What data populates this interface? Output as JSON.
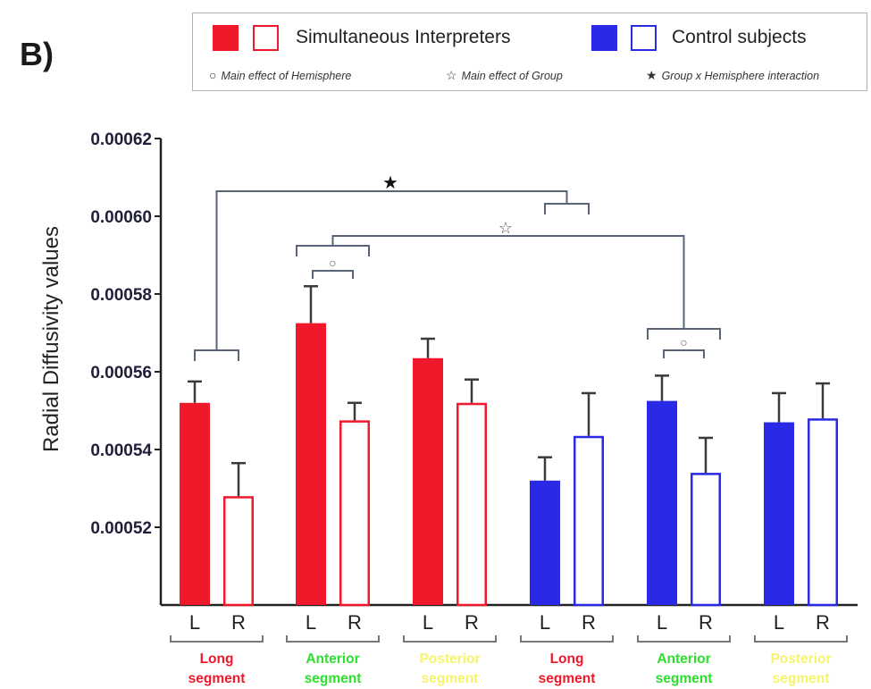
{
  "panel_label": "B)",
  "legend": {
    "groups": [
      {
        "label": "Simultaneous Interpreters",
        "color": "#f0192b"
      },
      {
        "label": "Control subjects",
        "color": "#2929e6"
      }
    ],
    "notes": [
      {
        "symbol": "○",
        "text": "Main effect of Hemisphere"
      },
      {
        "symbol": "☆",
        "text": "Main effect of Group"
      },
      {
        "symbol": "★",
        "text": "Group x Hemisphere interaction"
      }
    ]
  },
  "chart_data": {
    "type": "bar",
    "ylabel": "Radial Diffusivity values",
    "ylim": [
      0.0005,
      0.00062
    ],
    "yticks": [
      "0.00052",
      "0.00054",
      "0.00056",
      "0.00058",
      "0.00060",
      "0.00062"
    ],
    "grid": false,
    "hemisphere_labels": [
      "L",
      "R"
    ],
    "segment_groups": [
      {
        "label_lines": [
          "Long",
          "segment"
        ],
        "color": "#f0192b"
      },
      {
        "label_lines": [
          "Anterior",
          "segment"
        ],
        "color": "#2ee02e"
      },
      {
        "label_lines": [
          "Posterior",
          "segment"
        ],
        "color": "#f5f56b"
      },
      {
        "label_lines": [
          "Long",
          "segment"
        ],
        "color": "#f0192b"
      },
      {
        "label_lines": [
          "Anterior",
          "segment"
        ],
        "color": "#2ee02e"
      },
      {
        "label_lines": [
          "Posterior",
          "segment"
        ],
        "color": "#f5f56b"
      }
    ],
    "bars": [
      {
        "group": "Simultaneous Interpreters",
        "segment": "Long segment",
        "hemisphere": "L",
        "value": 0.000552,
        "error": 5.5e-06,
        "filled": true,
        "color": "#f0192b"
      },
      {
        "group": "Simultaneous Interpreters",
        "segment": "Long segment",
        "hemisphere": "R",
        "value": 0.000528,
        "error": 8.5e-06,
        "filled": false,
        "color": "#f0192b"
      },
      {
        "group": "Simultaneous Interpreters",
        "segment": "Anterior segment",
        "hemisphere": "L",
        "value": 0.0005725,
        "error": 9.5e-06,
        "filled": true,
        "color": "#f0192b"
      },
      {
        "group": "Simultaneous Interpreters",
        "segment": "Anterior segment",
        "hemisphere": "R",
        "value": 0.0005475,
        "error": 4.5e-06,
        "filled": false,
        "color": "#f0192b"
      },
      {
        "group": "Simultaneous Interpreters",
        "segment": "Posterior segment",
        "hemisphere": "L",
        "value": 0.0005635,
        "error": 5e-06,
        "filled": true,
        "color": "#f0192b"
      },
      {
        "group": "Simultaneous Interpreters",
        "segment": "Posterior segment",
        "hemisphere": "R",
        "value": 0.000552,
        "error": 6e-06,
        "filled": false,
        "color": "#f0192b"
      },
      {
        "group": "Control subjects",
        "segment": "Long segment",
        "hemisphere": "L",
        "value": 0.000532,
        "error": 6e-06,
        "filled": true,
        "color": "#2929e6"
      },
      {
        "group": "Control subjects",
        "segment": "Long segment",
        "hemisphere": "R",
        "value": 0.0005435,
        "error": 1.1e-05,
        "filled": false,
        "color": "#2929e6"
      },
      {
        "group": "Control subjects",
        "segment": "Anterior segment",
        "hemisphere": "L",
        "value": 0.0005525,
        "error": 6.5e-06,
        "filled": true,
        "color": "#2929e6"
      },
      {
        "group": "Control subjects",
        "segment": "Anterior segment",
        "hemisphere": "R",
        "value": 0.000534,
        "error": 9e-06,
        "filled": false,
        "color": "#2929e6"
      },
      {
        "group": "Control subjects",
        "segment": "Posterior segment",
        "hemisphere": "L",
        "value": 0.000547,
        "error": 7.5e-06,
        "filled": true,
        "color": "#2929e6"
      },
      {
        "group": "Control subjects",
        "segment": "Posterior segment",
        "hemisphere": "R",
        "value": 0.000548,
        "error": 9e-06,
        "filled": false,
        "color": "#2929e6"
      }
    ],
    "annotations": [
      {
        "symbol": "★",
        "meaning": "Group x Hemisphere interaction",
        "between": [
          "Interpreters Long segment",
          "Controls Long segment"
        ]
      },
      {
        "symbol": "☆",
        "meaning": "Main effect of Group",
        "between": [
          "Interpreters Anterior segment",
          "Controls Anterior segment"
        ]
      },
      {
        "symbol": "○",
        "meaning": "Main effect of Hemisphere",
        "on": "Interpreters Anterior segment L vs R"
      },
      {
        "symbol": "○",
        "meaning": "Main effect of Hemisphere",
        "on": "Controls Anterior segment L vs R"
      }
    ]
  }
}
